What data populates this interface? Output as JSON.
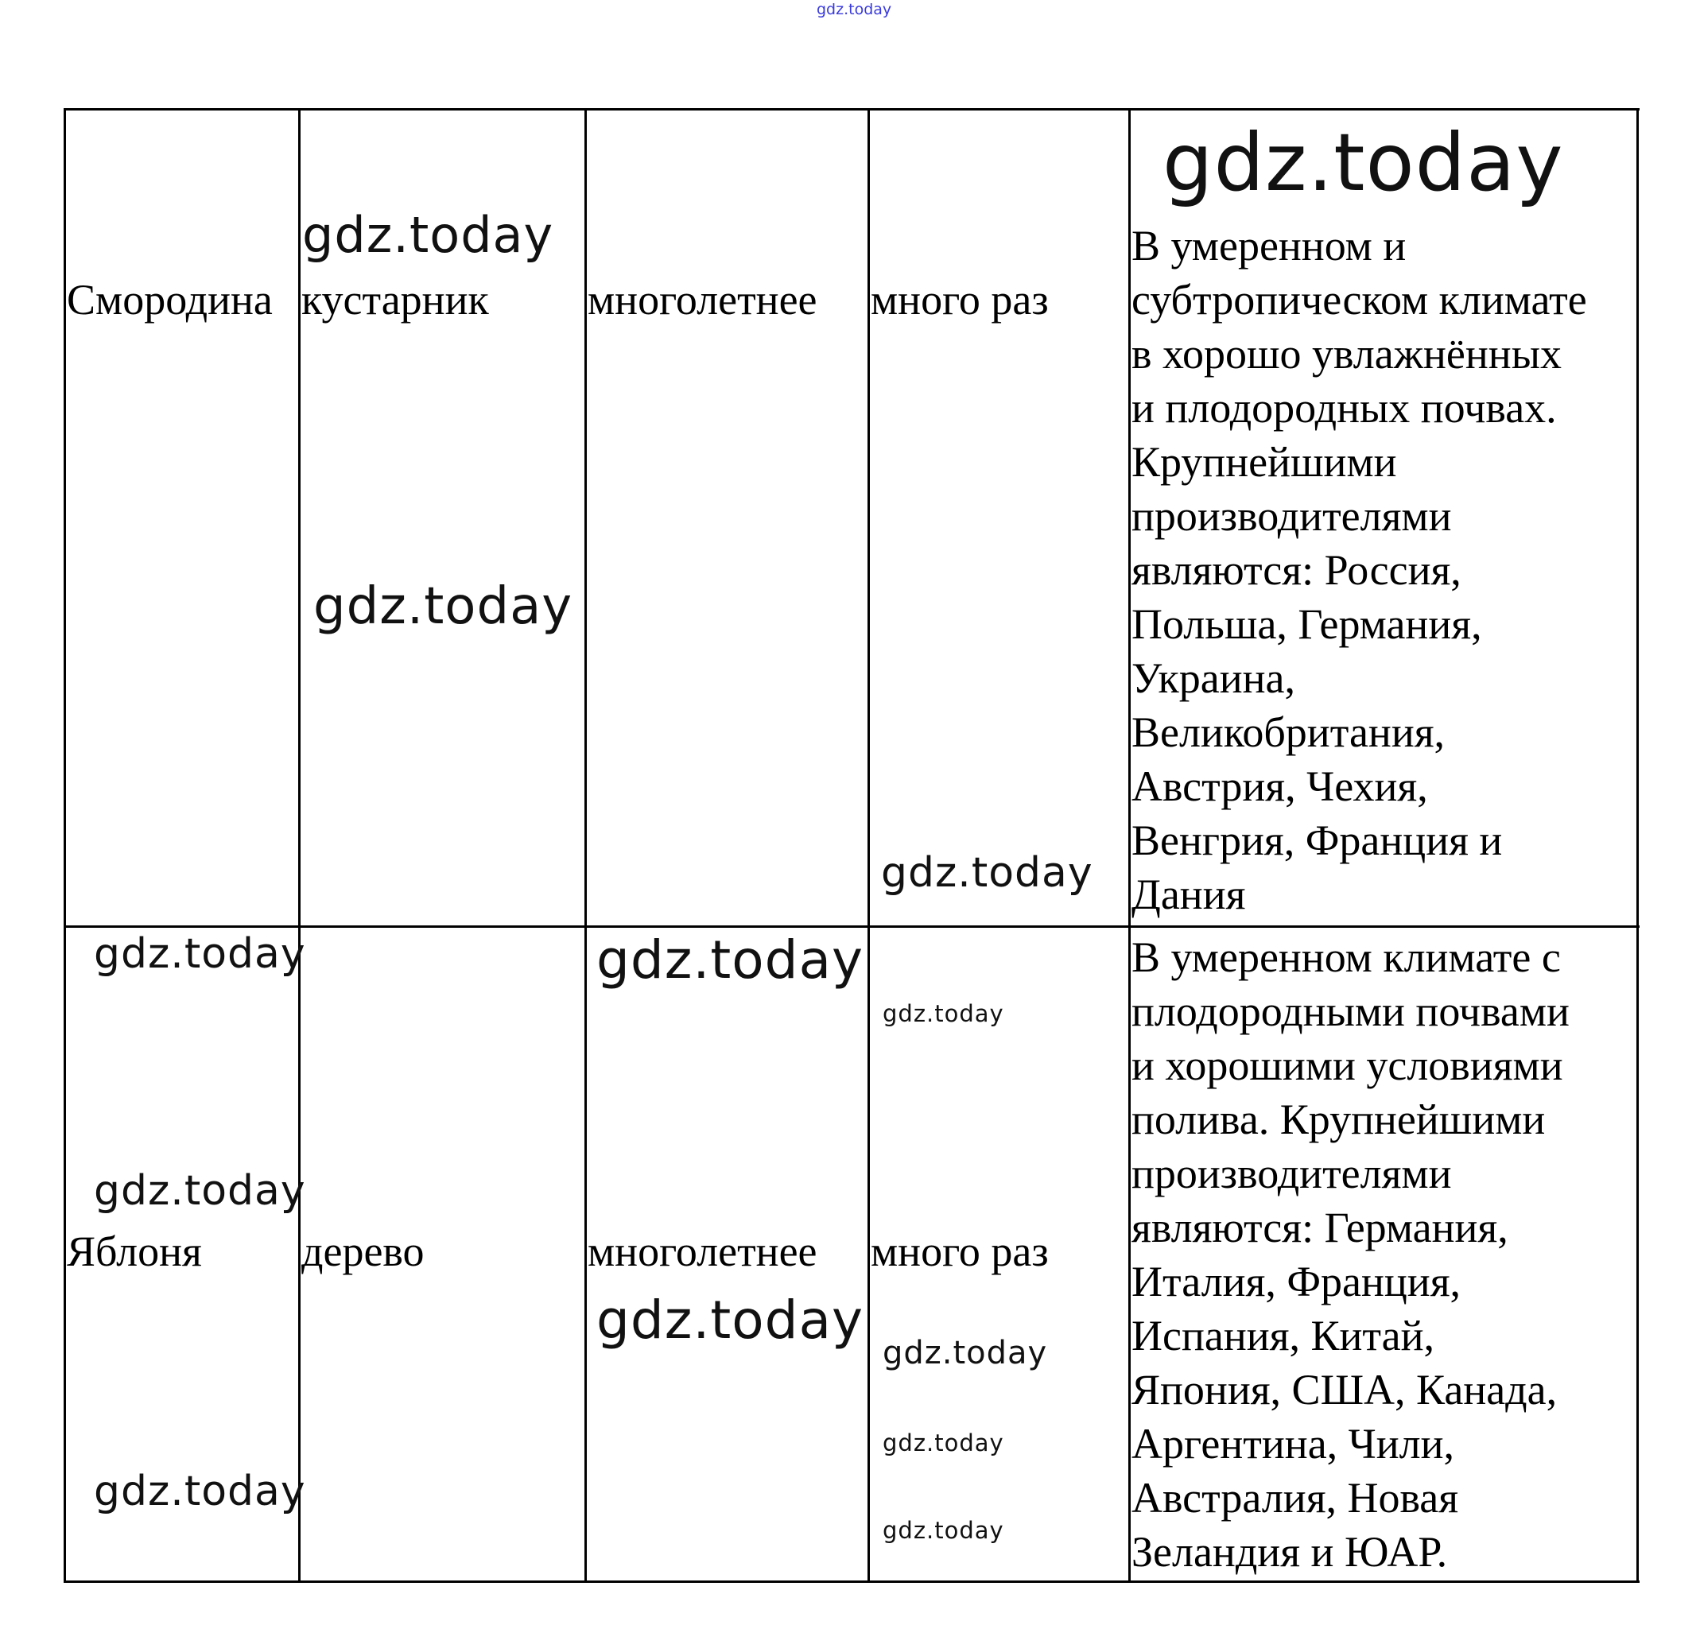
{
  "watermark": "gdz.today",
  "watermark_color": "#3a3adf",
  "rows": [
    {
      "plant": "Смородина",
      "form": "кустарник",
      "lifespan": "многолетнее",
      "fruiting": "много раз",
      "growing_lines": [
        "В умеренном и",
        "субтропическом климате",
        "в хорошо увлажнённых",
        "и плодородных почвах.",
        "Крупнейшими",
        "производителями",
        "являются: Россия,",
        "Польша, Германия,",
        "Украина,",
        "Великобритания,",
        "Австрия, Чехия,",
        "Венгрия, Франция и",
        "Дания"
      ]
    },
    {
      "plant": "Яблоня",
      "form": "дерево",
      "lifespan": "многолетнее",
      "fruiting": "много раз",
      "growing_lines": [
        "В умеренном климате с",
        "плодородными почвами",
        "и хорошими условиями",
        "полива. Крупнейшими",
        "производителями",
        "являются: Германия,",
        "Италия, Франция,",
        "Испания, Китай,",
        "Япония, США, Канада,",
        "Аргентина, Чили,",
        "Австралия, Новая",
        "Зеландия и ЮАР."
      ]
    }
  ]
}
